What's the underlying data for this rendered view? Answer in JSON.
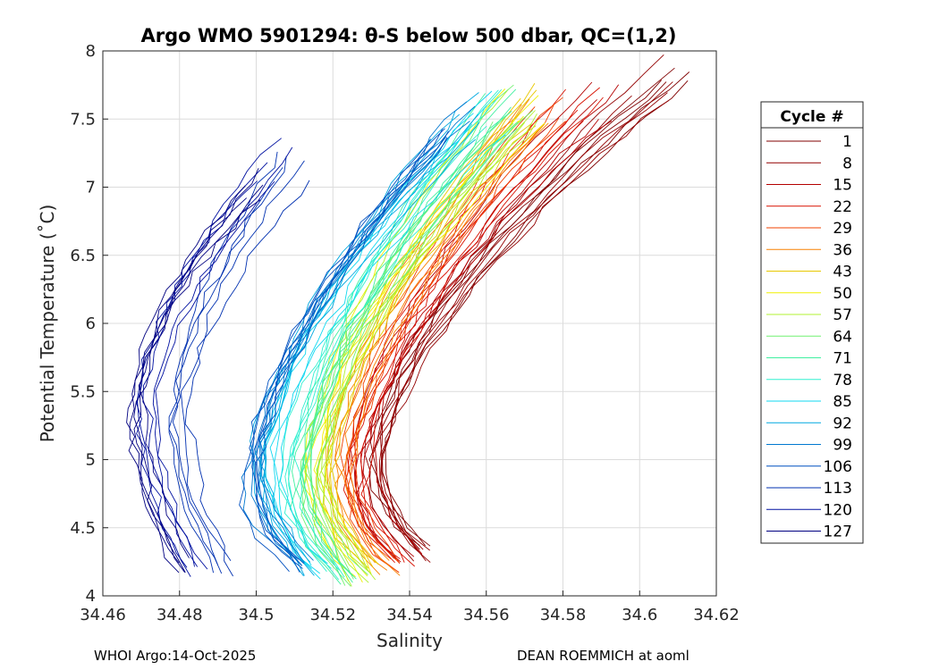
{
  "chart_data": {
    "type": "line",
    "title": "Argo WMO 5901294: θ-S below 500 dbar,  QC=(1,2)",
    "xlabel": "Salinity",
    "ylabel": "Potential Temperature (˚C)",
    "xlim": [
      34.46,
      34.62
    ],
    "ylim": [
      4,
      8
    ],
    "xticks": [
      34.46,
      34.48,
      34.5,
      34.52,
      34.54,
      34.56,
      34.58,
      34.6,
      34.62
    ],
    "yticks": [
      4,
      4.5,
      5,
      5.5,
      6,
      6.5,
      7,
      7.5,
      8
    ],
    "xtick_labels": [
      "34.46",
      "34.48",
      "34.5",
      "34.52",
      "34.54",
      "34.56",
      "34.58",
      "34.6",
      "34.62"
    ],
    "ytick_labels": [
      "4",
      "4.5",
      "5",
      "5.5",
      "6",
      "6.5",
      "7",
      "7.5",
      "8"
    ],
    "grid": true,
    "legend": {
      "title": "Cycle #",
      "placement": "right",
      "entries": [
        {
          "label": "1",
          "color": "#800000",
          "rep": {
            "salinity_min": 34.532,
            "salinity_max": 34.61,
            "theta_bottom": 4.35,
            "theta_top": 7.85
          }
        },
        {
          "label": "8",
          "color": "#930000",
          "rep": {
            "salinity_min": 34.531,
            "salinity_max": 34.604,
            "theta_bottom": 4.3,
            "theta_top": 7.8
          }
        },
        {
          "label": "15",
          "color": "#b40000",
          "rep": {
            "salinity_min": 34.528,
            "salinity_max": 34.59,
            "theta_bottom": 4.28,
            "theta_top": 7.65
          }
        },
        {
          "label": "22",
          "color": "#d81000",
          "rep": {
            "salinity_min": 34.526,
            "salinity_max": 34.585,
            "theta_bottom": 4.25,
            "theta_top": 7.62
          }
        },
        {
          "label": "29",
          "color": "#f04000",
          "rep": {
            "salinity_min": 34.524,
            "salinity_max": 34.578,
            "theta_bottom": 4.22,
            "theta_top": 7.58
          }
        },
        {
          "label": "36",
          "color": "#f88000",
          "rep": {
            "salinity_min": 34.522,
            "salinity_max": 34.574,
            "theta_bottom": 4.2,
            "theta_top": 7.55
          }
        },
        {
          "label": "43",
          "color": "#e8c800",
          "rep": {
            "salinity_min": 34.519,
            "salinity_max": 34.573,
            "theta_bottom": 4.18,
            "theta_top": 7.6
          }
        },
        {
          "label": "50",
          "color": "#f0f000",
          "rep": {
            "salinity_min": 34.516,
            "salinity_max": 34.571,
            "theta_bottom": 4.15,
            "theta_top": 7.62
          }
        },
        {
          "label": "57",
          "color": "#b0f030",
          "rep": {
            "salinity_min": 34.516,
            "salinity_max": 34.57,
            "theta_bottom": 4.12,
            "theta_top": 7.6
          }
        },
        {
          "label": "64",
          "color": "#70f070",
          "rep": {
            "salinity_min": 34.514,
            "salinity_max": 34.568,
            "theta_bottom": 4.1,
            "theta_top": 7.62
          }
        },
        {
          "label": "71",
          "color": "#40f0a0",
          "rep": {
            "salinity_min": 34.512,
            "salinity_max": 34.566,
            "theta_bottom": 4.12,
            "theta_top": 7.6
          }
        },
        {
          "label": "78",
          "color": "#30f0d0",
          "rep": {
            "salinity_min": 34.509,
            "salinity_max": 34.564,
            "theta_bottom": 4.15,
            "theta_top": 7.58
          }
        },
        {
          "label": "85",
          "color": "#10d8f0",
          "rep": {
            "salinity_min": 34.504,
            "salinity_max": 34.56,
            "theta_bottom": 4.18,
            "theta_top": 7.55
          }
        },
        {
          "label": "92",
          "color": "#00a8e0",
          "rep": {
            "salinity_min": 34.501,
            "salinity_max": 34.557,
            "theta_bottom": 4.2,
            "theta_top": 7.52
          }
        },
        {
          "label": "99",
          "color": "#0078d0",
          "rep": {
            "salinity_min": 34.499,
            "salinity_max": 34.552,
            "theta_bottom": 4.22,
            "theta_top": 7.5
          }
        },
        {
          "label": "106",
          "color": "#0050c0",
          "rep": {
            "salinity_min": 34.497,
            "salinity_max": 34.548,
            "theta_bottom": 4.2,
            "theta_top": 7.45
          }
        },
        {
          "label": "113",
          "color": "#0030b0",
          "rep": {
            "salinity_min": 34.48,
            "salinity_max": 34.51,
            "theta_bottom": 4.2,
            "theta_top": 7.1
          }
        },
        {
          "label": "120",
          "color": "#0010a0",
          "rep": {
            "salinity_min": 34.472,
            "salinity_max": 34.505,
            "theta_bottom": 4.18,
            "theta_top": 7.2
          }
        },
        {
          "label": "127",
          "color": "#000080",
          "rep": {
            "salinity_min": 34.469,
            "salinity_max": 34.5,
            "theta_bottom": 4.22,
            "theta_top": 7.05
          }
        }
      ]
    }
  },
  "footer": {
    "left": "WHOI Argo:14-Oct-2025",
    "right": "DEAN ROEMMICH at aoml"
  }
}
